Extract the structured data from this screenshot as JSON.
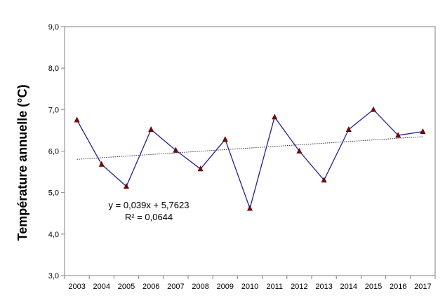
{
  "chart_data": {
    "type": "line",
    "title": "",
    "xlabel": "",
    "ylabel": "Température annuelle (°C)",
    "categories": [
      "2003",
      "2004",
      "2005",
      "2006",
      "2007",
      "2008",
      "2009",
      "2010",
      "2011",
      "2012",
      "2013",
      "2014",
      "2015",
      "2016",
      "2017"
    ],
    "series": [
      {
        "values": [
          6.75,
          5.68,
          5.15,
          6.52,
          6.02,
          5.57,
          6.28,
          4.62,
          6.82,
          6.0,
          5.3,
          6.52,
          7.0,
          6.38,
          6.47
        ]
      }
    ],
    "ylim": [
      3.0,
      9.0
    ],
    "yticks": [
      "3,0",
      "4,0",
      "5,0",
      "6,0",
      "7,0",
      "8,0",
      "9,0"
    ],
    "trendline": {
      "slope": 0.039,
      "intercept": 5.7623,
      "equation": "y = 0,039x + 5,7623",
      "r2": "R² = 0,0644"
    },
    "grid": false,
    "legend": "none",
    "colors": {
      "line": "#1f1fa8",
      "marker_fill": "#8b0000",
      "marker_stroke": "#3b0000",
      "trend": "#333333",
      "axis": "#808080"
    }
  }
}
